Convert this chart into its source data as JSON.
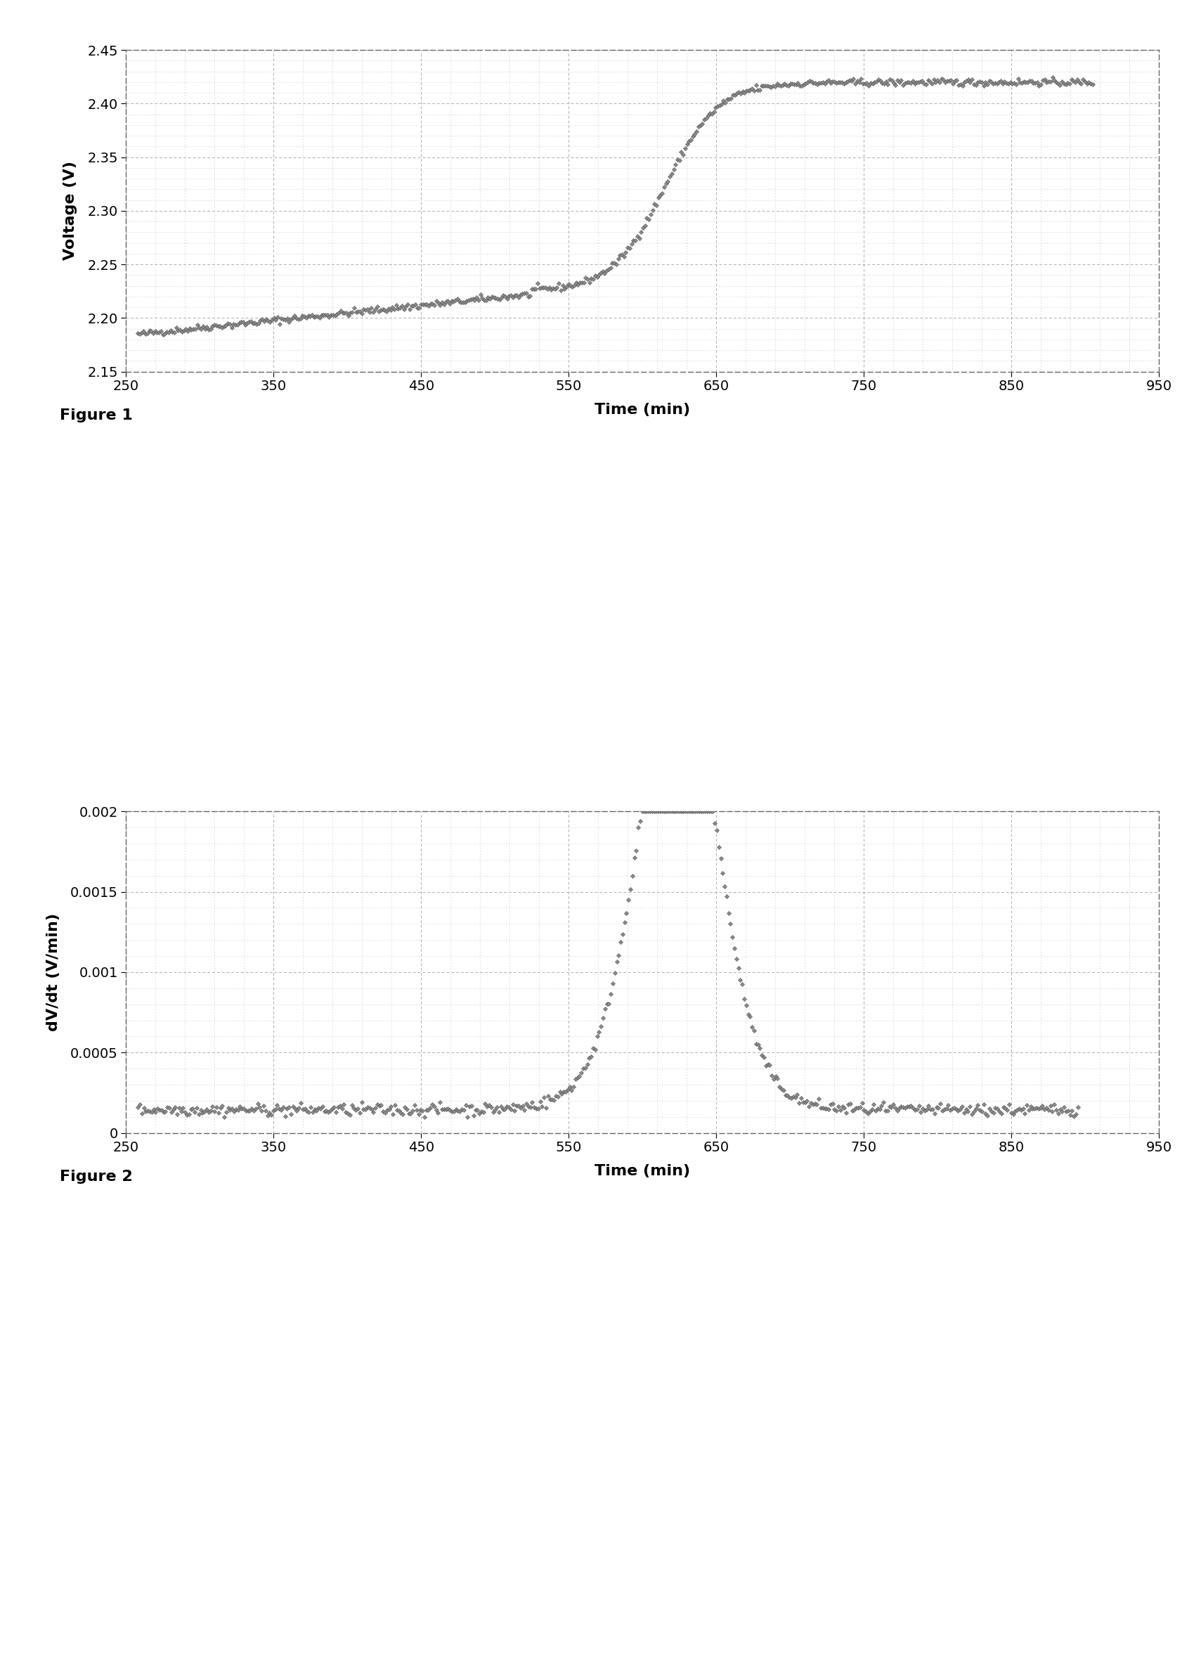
{
  "fig1": {
    "xlabel": "Time (min)",
    "ylabel": "Voltage (V)",
    "xlim": [
      250,
      950
    ],
    "ylim": [
      2.15,
      2.45
    ],
    "xticks": [
      250,
      350,
      450,
      550,
      650,
      750,
      850,
      950
    ],
    "yticks": [
      2.15,
      2.2,
      2.25,
      2.3,
      2.35,
      2.4,
      2.45
    ],
    "caption": "Figure 1"
  },
  "fig2": {
    "xlabel": "Time (min)",
    "ylabel": "dV/dt (V/min)",
    "xlim": [
      250,
      950
    ],
    "ylim": [
      0,
      0.002
    ],
    "xticks": [
      250,
      350,
      450,
      550,
      650,
      750,
      850,
      950
    ],
    "yticks": [
      0,
      0.0005,
      0.001,
      0.0015,
      0.002
    ],
    "caption": "Figure 2"
  },
  "background_color": "#ffffff",
  "plot_bg_color": "#ffffff",
  "marker_color_face": "#888888",
  "marker_color_edge": "#444444",
  "marker": "D",
  "marker_size": 3.2,
  "border_color": "#666666",
  "grid_color": "#999999"
}
